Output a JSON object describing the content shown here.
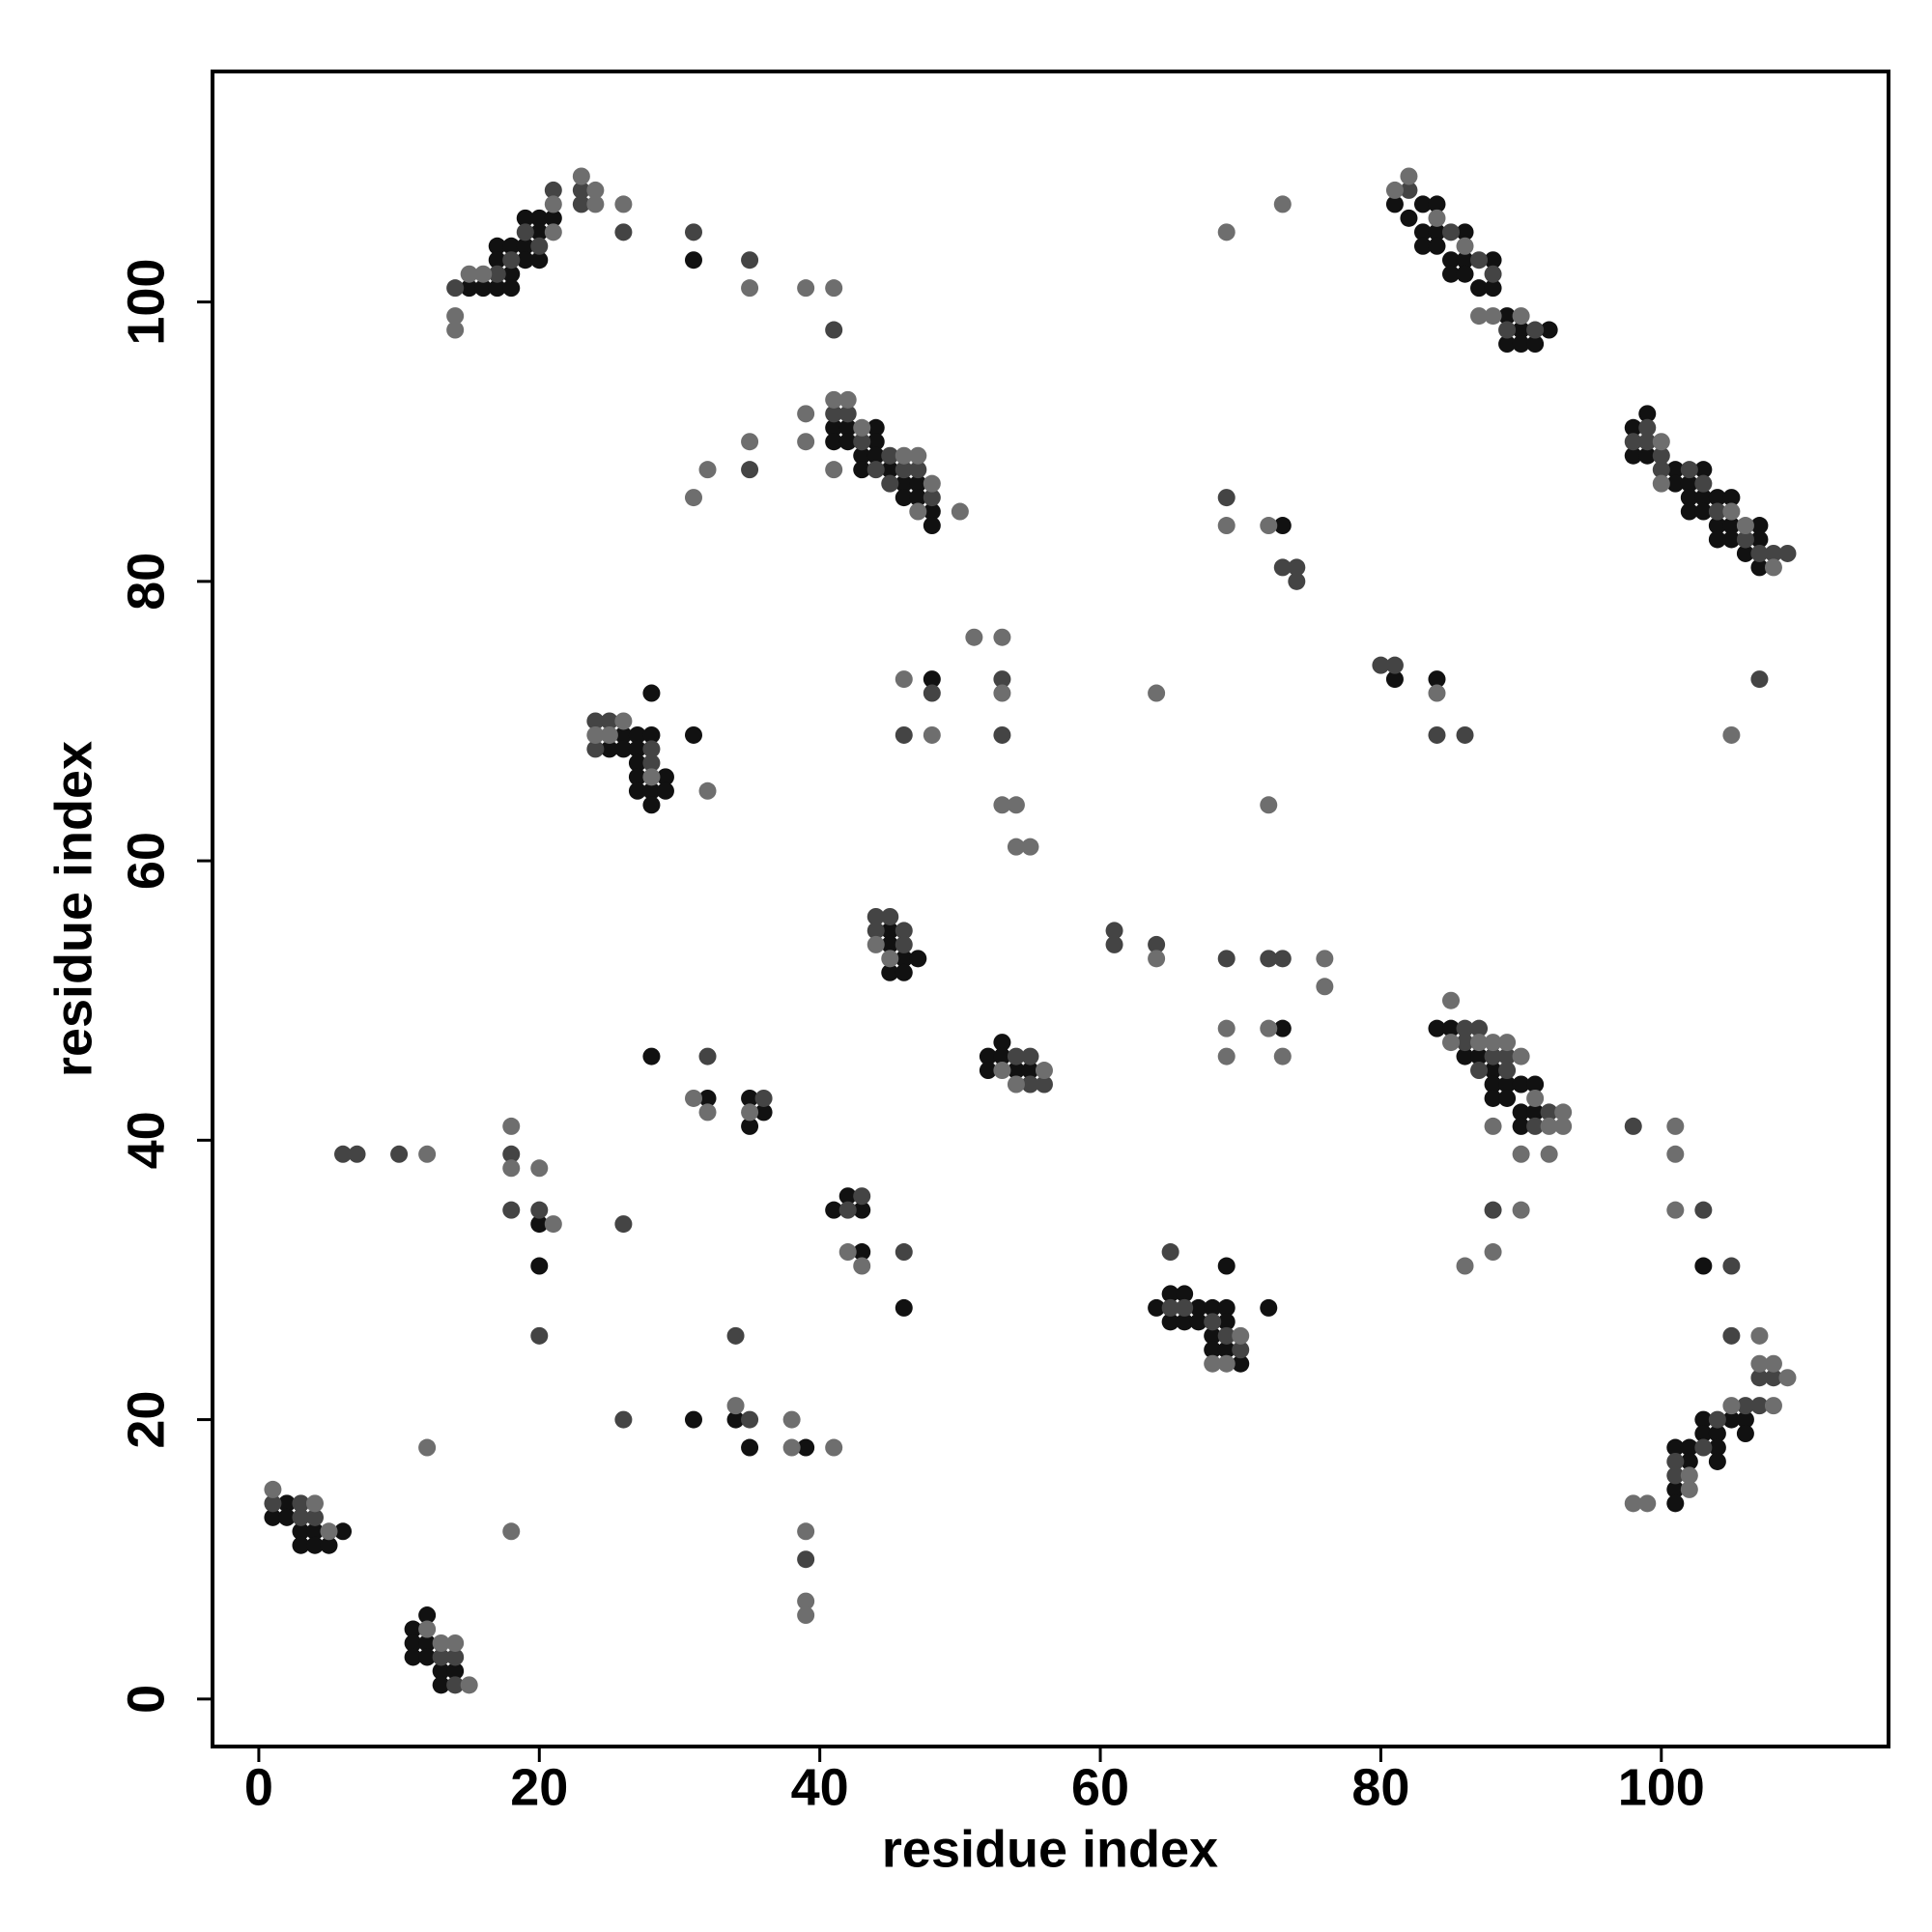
{
  "chart_data": {
    "type": "scatter",
    "xlabel": "residue index",
    "ylabel": "residue index",
    "xlim": [
      -3.3,
      116.2
    ],
    "ylim": [
      -3.4,
      116.5
    ],
    "xticks": [
      0,
      20,
      40,
      60,
      80,
      100
    ],
    "yticks": [
      0,
      20,
      40,
      60,
      80,
      100
    ],
    "series": [
      {
        "color": "#111111",
        "x": [
          1,
          2,
          2,
          3,
          3,
          4,
          4,
          5,
          6,
          11,
          11,
          11,
          12,
          12,
          12,
          13,
          13,
          14,
          20,
          20,
          31,
          34,
          35,
          39,
          28,
          32,
          35,
          35,
          36,
          41,
          42,
          43,
          43,
          46,
          25,
          26,
          26,
          27,
          27,
          27,
          27,
          27,
          28,
          28,
          28,
          28,
          29,
          29,
          31,
          45,
          45,
          45,
          46,
          46,
          47,
          52,
          52,
          53,
          53,
          54,
          55,
          48,
          41,
          41,
          42,
          42,
          43,
          43,
          44,
          44,
          44,
          45,
          46,
          46,
          47,
          47,
          48,
          48,
          31,
          15,
          16,
          17,
          17,
          17,
          18,
          18,
          18,
          19,
          19,
          19,
          20,
          20,
          20,
          21,
          73,
          73,
          64,
          65,
          65,
          66,
          66,
          67,
          67,
          68,
          68,
          68,
          69,
          69,
          69,
          69,
          70,
          72,
          81,
          84,
          81,
          82,
          83,
          83,
          83,
          84,
          84,
          84,
          85,
          85,
          86,
          86,
          86,
          87,
          88,
          88,
          89,
          89,
          90,
          90,
          91,
          92,
          98,
          98,
          99,
          99,
          101,
          101,
          102,
          102,
          102,
          103,
          103,
          103,
          104,
          104,
          104,
          105,
          105,
          105,
          106,
          107,
          107,
          107,
          84,
          85,
          86,
          87,
          88,
          88,
          88,
          89,
          89,
          90,
          90,
          90,
          91,
          91,
          103,
          101,
          101,
          101,
          102,
          102,
          103,
          103,
          104,
          104,
          104,
          105,
          106,
          106
        ],
        "y": [
          13,
          14,
          13,
          12,
          11,
          12,
          11,
          11,
          12,
          5,
          4,
          3,
          6,
          4,
          3,
          2,
          1,
          2,
          34,
          31,
          20,
          20,
          18,
          18,
          46,
          43,
          43,
          41,
          42,
          35,
          36,
          35,
          32,
          28,
          68,
          69,
          68,
          69,
          68,
          67,
          66,
          65,
          72,
          69,
          65,
          64,
          66,
          65,
          69,
          55,
          54,
          52,
          53,
          52,
          53,
          46,
          45,
          47,
          46,
          45,
          45,
          73,
          91,
          90,
          91,
          90,
          89,
          88,
          91,
          90,
          89,
          88,
          87,
          86,
          87,
          86,
          85,
          84,
          103,
          101,
          101,
          104,
          103,
          101,
          104,
          102,
          101,
          106,
          104,
          103,
          106,
          105,
          103,
          106,
          84,
          48,
          28,
          29,
          27,
          29,
          27,
          28,
          27,
          28,
          26,
          25,
          31,
          28,
          27,
          25,
          24,
          28,
          73,
          73,
          107,
          106,
          107,
          105,
          104,
          107,
          105,
          104,
          103,
          102,
          105,
          103,
          102,
          101,
          103,
          101,
          99,
          97,
          98,
          97,
          97,
          98,
          91,
          89,
          92,
          89,
          88,
          87,
          87,
          86,
          85,
          88,
          86,
          85,
          86,
          84,
          83,
          86,
          84,
          83,
          82,
          84,
          83,
          81,
          48,
          48,
          46,
          46,
          45,
          44,
          43,
          44,
          43,
          44,
          42,
          41,
          44,
          42,
          31,
          18,
          15,
          14,
          18,
          17,
          20,
          19,
          19,
          18,
          17,
          20,
          20,
          19
        ]
      },
      {
        "color": "#444444",
        "x": [
          1,
          3,
          3,
          4,
          13,
          14,
          14,
          6,
          7,
          10,
          18,
          18,
          20,
          20,
          26,
          26,
          34,
          35,
          39,
          32,
          36,
          42,
          43,
          46,
          24,
          24,
          25,
          28,
          28,
          44,
          44,
          45,
          46,
          46,
          54,
          55,
          55,
          56,
          53,
          53,
          46,
          48,
          35,
          41,
          42,
          43,
          44,
          45,
          45,
          46,
          47,
          48,
          31,
          35,
          41,
          26,
          23,
          23,
          14,
          17,
          18,
          19,
          20,
          21,
          69,
          73,
          74,
          74,
          61,
          61,
          64,
          69,
          72,
          73,
          65,
          65,
          66,
          68,
          69,
          70,
          80,
          81,
          84,
          86,
          107,
          82,
          85,
          87,
          88,
          89,
          91,
          98,
          99,
          99,
          100,
          100,
          102,
          103,
          104,
          106,
          107,
          108,
          109,
          86,
          86,
          87,
          87,
          88,
          89,
          89,
          91,
          92,
          88,
          98,
          103,
          105,
          105,
          107,
          108,
          101,
          101,
          103,
          104,
          106,
          107
        ],
        "y": [
          14,
          14,
          13,
          13,
          3,
          3,
          1,
          39,
          39,
          39,
          39,
          35,
          35,
          26,
          34,
          20,
          26,
          20,
          10,
          46,
          43,
          35,
          36,
          32,
          70,
          68,
          70,
          68,
          67,
          56,
          55,
          56,
          55,
          54,
          46,
          46,
          44,
          44,
          73,
          69,
          69,
          72,
          88,
          92,
          92,
          90,
          88,
          89,
          87,
          88,
          88,
          86,
          105,
          103,
          98,
          105,
          108,
          107,
          101,
          102,
          103,
          105,
          104,
          108,
          86,
          81,
          81,
          80,
          55,
          54,
          54,
          53,
          53,
          53,
          32,
          28,
          28,
          27,
          26,
          25,
          74,
          74,
          69,
          69,
          73,
          108,
          105,
          103,
          102,
          98,
          98,
          90,
          91,
          90,
          89,
          88,
          88,
          87,
          85,
          83,
          82,
          82,
          82,
          48,
          47,
          48,
          45,
          46,
          46,
          45,
          41,
          42,
          35,
          41,
          35,
          31,
          26,
          23,
          23,
          17,
          16,
          18,
          20,
          21,
          21
        ]
      },
      {
        "color": "#6e6e6e",
        "x": [
          1,
          4,
          5,
          12,
          13,
          14,
          15,
          12,
          18,
          12,
          18,
          18,
          20,
          21,
          34,
          38,
          38,
          41,
          39,
          39,
          39,
          31,
          32,
          35,
          42,
          43,
          24,
          25,
          26,
          28,
          32,
          44,
          45,
          53,
          54,
          56,
          51,
          53,
          53,
          46,
          48,
          53,
          54,
          54,
          55,
          31,
          32,
          35,
          39,
          39,
          41,
          41,
          42,
          43,
          46,
          47,
          47,
          48,
          50,
          35,
          39,
          41,
          26,
          23,
          24,
          24,
          14,
          14,
          15,
          16,
          21,
          21,
          69,
          73,
          69,
          72,
          64,
          72,
          64,
          76,
          76,
          69,
          72,
          69,
          73,
          68,
          69,
          70,
          84,
          105,
          81,
          82,
          84,
          86,
          87,
          88,
          90,
          100,
          100,
          105,
          106,
          108,
          85,
          85,
          87,
          88,
          89,
          90,
          91,
          92,
          93,
          93,
          88,
          90,
          92,
          90,
          88,
          86,
          101,
          101,
          101,
          107,
          107,
          108,
          108,
          109,
          98,
          99,
          102,
          102,
          105
        ],
        "y": [
          15,
          14,
          12,
          5,
          4,
          4,
          1,
          18,
          12,
          39,
          41,
          38,
          38,
          34,
          21,
          20,
          18,
          18,
          12,
          7,
          6,
          43,
          42,
          42,
          32,
          31,
          69,
          69,
          70,
          66,
          65,
          54,
          53,
          45,
          44,
          45,
          76,
          76,
          72,
          73,
          69,
          64,
          64,
          61,
          61,
          86,
          88,
          90,
          92,
          90,
          88,
          93,
          93,
          91,
          89,
          89,
          85,
          87,
          85,
          101,
          101,
          101,
          107,
          109,
          108,
          107,
          99,
          98,
          102,
          102,
          107,
          105,
          105,
          107,
          84,
          84,
          72,
          64,
          53,
          53,
          51,
          48,
          48,
          46,
          46,
          24,
          24,
          26,
          72,
          69,
          108,
          109,
          106,
          104,
          99,
          99,
          99,
          90,
          87,
          85,
          84,
          81,
          50,
          47,
          47,
          47,
          47,
          46,
          43,
          41,
          42,
          41,
          41,
          39,
          39,
          35,
          32,
          31,
          41,
          39,
          35,
          26,
          24,
          24,
          21,
          23,
          14,
          14,
          16,
          15,
          21
        ]
      }
    ]
  }
}
